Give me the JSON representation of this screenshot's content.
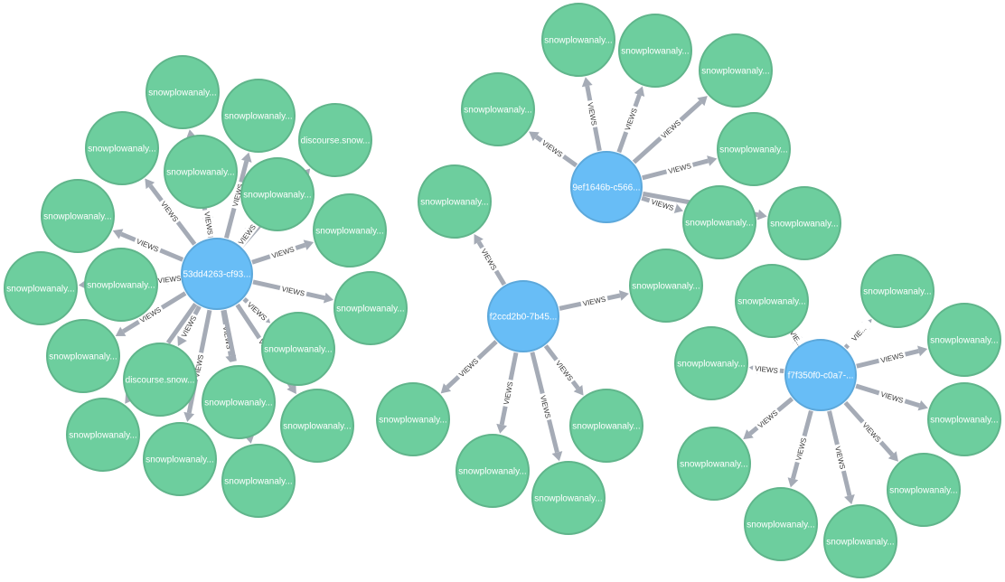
{
  "graph": {
    "colors": {
      "hub_fill": "#68bdf6",
      "hub_stroke": "#5ca8db",
      "page_fill": "#6dce9e",
      "page_stroke": "#60b58b",
      "edge": "#a5abb6",
      "edge_label_bg": "#ffffff"
    },
    "relationship_label": "VIEWS",
    "hubs": [
      {
        "id": "h1",
        "label": "53dd4263-cf93...",
        "pages": [
          {
            "label": "snowplowanaly...",
            "edge_label": "V..."
          },
          {
            "label": "snowplowanaly...",
            "edge_label": "VIEWS"
          },
          {
            "label": "discourse.snow...",
            "edge_label": "VIEWS"
          },
          {
            "label": "snowplowanaly...",
            "edge_label": "VIEWS"
          },
          {
            "label": "snowplowanaly...",
            "edge_label": "VIEWS"
          },
          {
            "label": "snowplowanaly...",
            "edge_label": "VIEWS"
          },
          {
            "label": "snowplowanaly...",
            "edge_label": "VIEWS"
          },
          {
            "label": "snowplowanaly...",
            "edge_label": "VIEWS"
          },
          {
            "label": "snowplowanaly...",
            "edge_label": "VIEWS"
          },
          {
            "label": "snowplowanaly...",
            "edge_label": "VIEWS"
          },
          {
            "label": "snowplowanaly...",
            "edge_label": "VIEWS"
          },
          {
            "label": "snowplowanaly...",
            "edge_label": "VIEWS"
          },
          {
            "label": "snowplowanaly...",
            "edge_label": "VIEWS"
          },
          {
            "label": "discourse.snow...",
            "edge_label": "VIEWS"
          },
          {
            "label": "snowplowanaly...",
            "edge_label": "VIEWS"
          },
          {
            "label": "snowplowanaly...",
            "edge_label": "VIEWS"
          },
          {
            "label": "snowplowanaly...",
            "edge_label": "VIEWS"
          },
          {
            "label": "snowplowanaly...",
            "edge_label": "VIEWS"
          },
          {
            "label": "snowplowanaly...",
            "edge_label": "VIE..."
          }
        ]
      },
      {
        "id": "h2",
        "label": "9ef1646b-c566...",
        "pages": [
          {
            "label": "snowplowanaly...",
            "edge_label": "VIEWS"
          },
          {
            "label": "snowplowanaly...",
            "edge_label": "VIEWS"
          },
          {
            "label": "snowplowanaly...",
            "edge_label": "VIEWS"
          },
          {
            "label": "snowplowanaly...",
            "edge_label": "VIEWS"
          },
          {
            "label": "snowplowanaly...",
            "edge_label": "VIEWS"
          },
          {
            "label": "snowplowanaly...",
            "edge_label": "VIEWS"
          },
          {
            "label": "snowplowanaly...",
            "edge_label": "VIEWS"
          }
        ]
      },
      {
        "id": "h3",
        "label": "f2ccd2b0-7b45...",
        "pages": [
          {
            "label": "snowplowanaly...",
            "edge_label": "VIEWS"
          },
          {
            "label": "snowplowanaly...",
            "edge_label": "VIEWS"
          },
          {
            "label": "snowplowanaly...",
            "edge_label": "VIEWS"
          },
          {
            "label": "snowplowanaly...",
            "edge_label": "VIEWS"
          },
          {
            "label": "snowplowanaly...",
            "edge_label": "VIEWS"
          },
          {
            "label": "snowplowanaly...",
            "edge_label": "VIEWS"
          }
        ]
      },
      {
        "id": "h4",
        "label": "f7f350f0-c0a7-...",
        "pages": [
          {
            "label": "snowplowanaly...",
            "edge_label": "VIE..."
          },
          {
            "label": "snowplowanaly...",
            "edge_label": "VIE..."
          },
          {
            "label": "snowplowanaly...",
            "edge_label": "VIEWS"
          },
          {
            "label": "snowplowanaly...",
            "edge_label": "VIEWS"
          },
          {
            "label": "snowplowanaly...",
            "edge_label": "VIEWS"
          },
          {
            "label": "snowplowanaly...",
            "edge_label": "VIEWS"
          },
          {
            "label": "snowplowanaly...",
            "edge_label": "VIEWS"
          },
          {
            "label": "snowplowanaly...",
            "edge_label": "VIEWS"
          },
          {
            "label": "snowplowanaly...",
            "edge_label": "VIEWS"
          }
        ]
      }
    ]
  }
}
